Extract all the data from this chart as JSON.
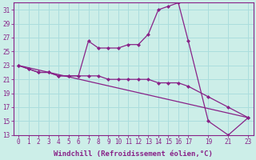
{
  "xlabel": "Windchill (Refroidissement éolien,°C)",
  "bg_color": "#cceee8",
  "line_color": "#882288",
  "grid_color": "#aadddd",
  "line1_x": [
    0,
    1,
    2,
    3,
    4,
    5,
    6,
    7,
    8,
    9,
    10,
    11,
    12,
    13,
    14,
    15,
    16,
    17,
    19,
    21,
    23
  ],
  "line1_y": [
    23,
    22.5,
    22,
    22,
    21.5,
    21.5,
    21.5,
    26.5,
    25.5,
    25.5,
    25.5,
    26,
    26,
    27.5,
    31,
    31.5,
    32,
    26.5,
    15.0,
    13.0,
    15.5
  ],
  "line2_x": [
    0,
    1,
    2,
    3,
    4,
    5,
    6,
    7,
    8,
    9,
    10,
    11,
    12,
    13,
    14,
    15,
    16,
    17,
    19,
    21,
    23
  ],
  "line2_y": [
    23,
    22.5,
    22,
    22,
    21.5,
    21.5,
    21.5,
    21.5,
    21.5,
    21.0,
    21.0,
    21.0,
    21.0,
    21.0,
    20.5,
    20.5,
    20.5,
    20.0,
    18.5,
    17.0,
    15.5
  ],
  "line3_x": [
    0,
    23
  ],
  "line3_y": [
    23,
    15.5
  ],
  "xmin": -0.5,
  "xmax": 23.5,
  "ymin": 13,
  "ymax": 32,
  "xtick_positions": [
    0,
    1,
    2,
    3,
    4,
    5,
    6,
    7,
    8,
    9,
    10,
    11,
    12,
    13,
    14,
    15,
    16,
    17,
    19,
    21,
    23
  ],
  "xtick_labels": [
    "0",
    "1",
    "2",
    "3",
    "4",
    "5",
    "6",
    "7",
    "8",
    "9",
    "10",
    "11",
    "12",
    "13",
    "14",
    "15",
    "16",
    "17",
    "19",
    "21",
    "23"
  ],
  "yticks": [
    13,
    15,
    17,
    19,
    21,
    23,
    25,
    27,
    29,
    31
  ],
  "tick_fontsize": 5.5,
  "xlabel_fontsize": 6.5
}
